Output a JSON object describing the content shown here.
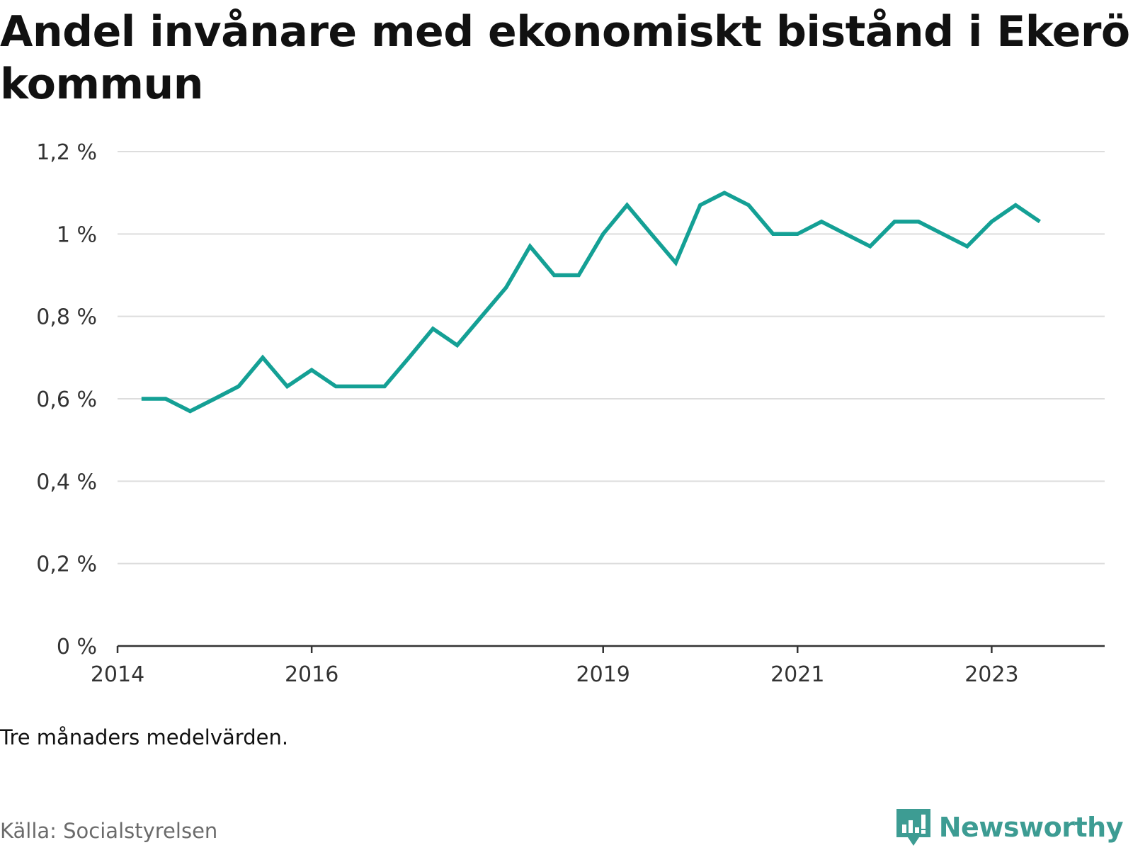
{
  "title": "Andel invånare med ekonomiskt bistånd i Ekerö kommun",
  "note": "Tre månaders medelvärden.",
  "source": "Källa: Socialstyrelsen",
  "logo": {
    "text": "Newsworthy",
    "icon": "newsworthy-logo-icon",
    "color": "#3d9c93"
  },
  "colors": {
    "line": "#14a095",
    "grid": "#dddddd",
    "axis": "#333333"
  },
  "chart_data": {
    "type": "line",
    "title": "Andel invånare med ekonomiskt bistånd i Ekerö kommun",
    "xlabel": "",
    "ylabel": "",
    "ylim": [
      0,
      1.2
    ],
    "yticks": [
      0,
      0.2,
      0.4,
      0.6,
      0.8,
      1.0,
      1.2
    ],
    "ytick_labels": [
      "0 %",
      "0,2 %",
      "0,4 %",
      "0,6 %",
      "0,8 %",
      "1 %",
      "1,2 %"
    ],
    "xlim": [
      "2014-01-01",
      "2024-03-01"
    ],
    "xticks": [
      "2014-01-01",
      "2016-01-01",
      "2019-01-01",
      "2021-01-01",
      "2023-01-01"
    ],
    "xtick_labels": [
      "2014",
      "2016",
      "2019",
      "2021",
      "2023"
    ],
    "grid": true,
    "series": [
      {
        "x": [
          "2014-04",
          "2014-07",
          "2014-10",
          "2015-01",
          "2015-04",
          "2015-07",
          "2015-10",
          "2016-01",
          "2016-04",
          "2016-07",
          "2016-10",
          "2017-01",
          "2017-04",
          "2017-07",
          "2017-10",
          "2018-01",
          "2018-04",
          "2018-07",
          "2018-10",
          "2019-01",
          "2019-04",
          "2019-07",
          "2019-10",
          "2020-01",
          "2020-04",
          "2020-07",
          "2020-10",
          "2021-01",
          "2021-04",
          "2021-07",
          "2021-10",
          "2022-01",
          "2022-04",
          "2022-07",
          "2022-10",
          "2023-01",
          "2023-04",
          "2023-07"
        ],
        "values": [
          0.6,
          0.6,
          0.57,
          0.6,
          0.63,
          0.7,
          0.63,
          0.67,
          0.63,
          0.63,
          0.63,
          0.7,
          0.77,
          0.73,
          0.8,
          0.87,
          0.97,
          0.9,
          0.9,
          1.0,
          1.07,
          1.0,
          0.93,
          1.07,
          1.1,
          1.07,
          1.0,
          1.0,
          1.03,
          1.0,
          0.97,
          1.03,
          1.03,
          1.0,
          0.97,
          1.03,
          1.07,
          1.03
        ]
      }
    ]
  }
}
